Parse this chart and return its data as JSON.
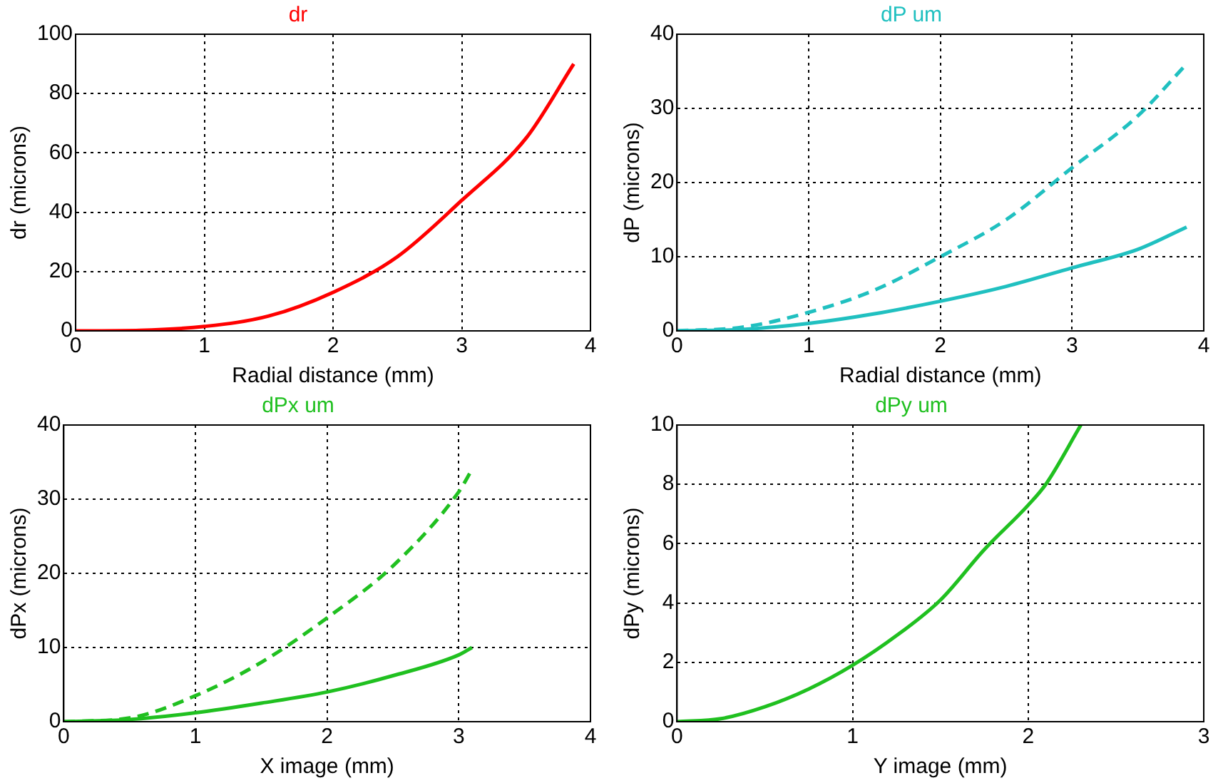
{
  "chart_data": [
    {
      "type": "line",
      "title": "dr",
      "xlabel": "Radial distance (mm)",
      "ylabel": "dr (microns)",
      "xlim": [
        0,
        4
      ],
      "xticks": [
        0,
        1,
        2,
        3,
        4
      ],
      "ylim": [
        0,
        100
      ],
      "yticks": [
        0,
        20,
        40,
        60,
        80,
        100
      ],
      "grid": true,
      "legend": false,
      "marker": "none",
      "series": [
        {
          "color": "#ff0000",
          "line_style": "solid",
          "x": [
            0,
            0.5,
            1,
            1.5,
            2,
            2.5,
            3,
            3.5,
            3.87
          ],
          "values": [
            0,
            0.2,
            1.5,
            5,
            13,
            25,
            44,
            65,
            90
          ]
        }
      ]
    },
    {
      "type": "line",
      "title": "dP um",
      "xlabel": "Radial distance (mm)",
      "ylabel": "dP (microns)",
      "xlim": [
        0,
        4
      ],
      "xticks": [
        0,
        1,
        2,
        3,
        4
      ],
      "ylim": [
        0,
        40
      ],
      "yticks": [
        0,
        10,
        20,
        30,
        40
      ],
      "grid": true,
      "legend": false,
      "marker": "none",
      "series": [
        {
          "color": "#20c0c0",
          "line_style": "dashed",
          "x": [
            0,
            0.5,
            1,
            1.5,
            2,
            2.5,
            3,
            3.5,
            3.87
          ],
          "values": [
            0,
            0.5,
            2.5,
            5.5,
            10,
            15,
            22,
            29,
            36
          ]
        },
        {
          "color": "#20c0c0",
          "line_style": "solid",
          "x": [
            0,
            0.5,
            1,
            1.5,
            2,
            2.5,
            3,
            3.5,
            3.87
          ],
          "values": [
            0,
            0.2,
            1,
            2.3,
            4,
            6,
            8.5,
            11,
            14
          ]
        }
      ]
    },
    {
      "type": "line",
      "title": "dPx um",
      "xlabel": "X image (mm)",
      "ylabel": "dPx (microns)",
      "xlim": [
        0,
        4
      ],
      "xticks": [
        0,
        1,
        2,
        3,
        4
      ],
      "ylim": [
        0,
        40
      ],
      "yticks": [
        0,
        10,
        20,
        30,
        40
      ],
      "grid": true,
      "legend": false,
      "marker": "none",
      "series": [
        {
          "color": "#20c020",
          "line_style": "dashed",
          "x": [
            0,
            0.5,
            1,
            1.5,
            2,
            2.5,
            3,
            3.1
          ],
          "values": [
            0,
            0.5,
            3.5,
            8,
            14,
            21,
            31,
            34
          ]
        },
        {
          "color": "#20c020",
          "line_style": "solid",
          "x": [
            0,
            0.5,
            1,
            1.5,
            2,
            2.5,
            3,
            3.1
          ],
          "values": [
            0,
            0.3,
            1.2,
            2.5,
            4,
            6.2,
            9,
            10
          ]
        }
      ]
    },
    {
      "type": "line",
      "title": "dPy um",
      "xlabel": "Y image (mm)",
      "ylabel": "dPy (microns)",
      "xlim": [
        0,
        3
      ],
      "xticks": [
        0,
        1,
        2,
        3
      ],
      "ylim": [
        0,
        10
      ],
      "yticks": [
        0,
        2,
        4,
        6,
        8,
        10
      ],
      "grid": true,
      "legend": false,
      "marker": "none",
      "series": [
        {
          "color": "#20c020",
          "line_style": "solid",
          "x": [
            0,
            0.25,
            0.5,
            0.75,
            1,
            1.25,
            1.5,
            1.75,
            2,
            2.1,
            2.3
          ],
          "values": [
            0,
            0.1,
            0.5,
            1.1,
            1.9,
            2.9,
            4.1,
            5.8,
            7.3,
            8,
            10
          ]
        }
      ]
    }
  ]
}
